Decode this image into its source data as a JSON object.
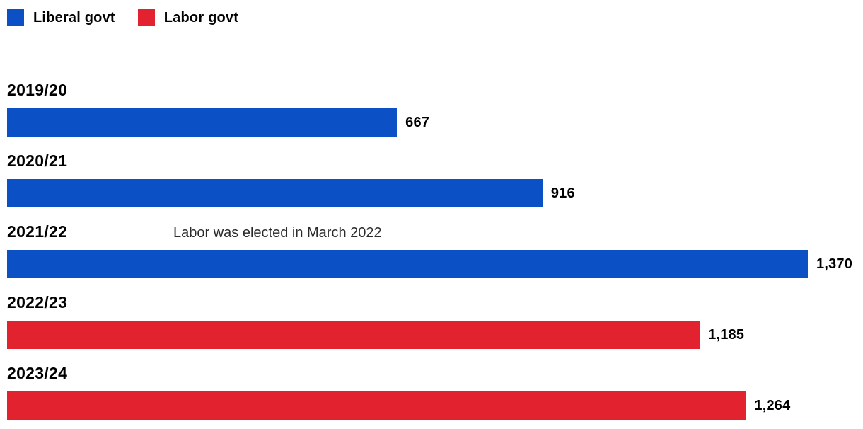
{
  "legend": {
    "items": [
      {
        "label": "Liberal govt",
        "party": "liberal"
      },
      {
        "label": "Labor govt",
        "party": "labor"
      }
    ]
  },
  "chart_data": {
    "type": "bar",
    "orientation": "horizontal",
    "title": "",
    "categories": [
      "2019/20",
      "2020/21",
      "2021/22",
      "2022/23",
      "2023/24"
    ],
    "values": [
      667,
      916,
      1370,
      1185,
      1264
    ],
    "value_labels": [
      "667",
      "916",
      "1,370",
      "1,185",
      "1,264"
    ],
    "bar_parties": [
      "liberal",
      "liberal",
      "liberal",
      "labor",
      "labor"
    ],
    "colors": {
      "liberal": "#0b51c5",
      "labor": "#e2222f"
    },
    "xlim": [
      0,
      1370
    ],
    "grid": false,
    "legend_entries": [
      "Liberal govt",
      "Labor govt"
    ],
    "legend_position": "top-left",
    "value_label_position": "end-of-bar",
    "annotation": {
      "text": "Labor was elected in March 2022",
      "attached_to_category": "2021/22"
    }
  }
}
